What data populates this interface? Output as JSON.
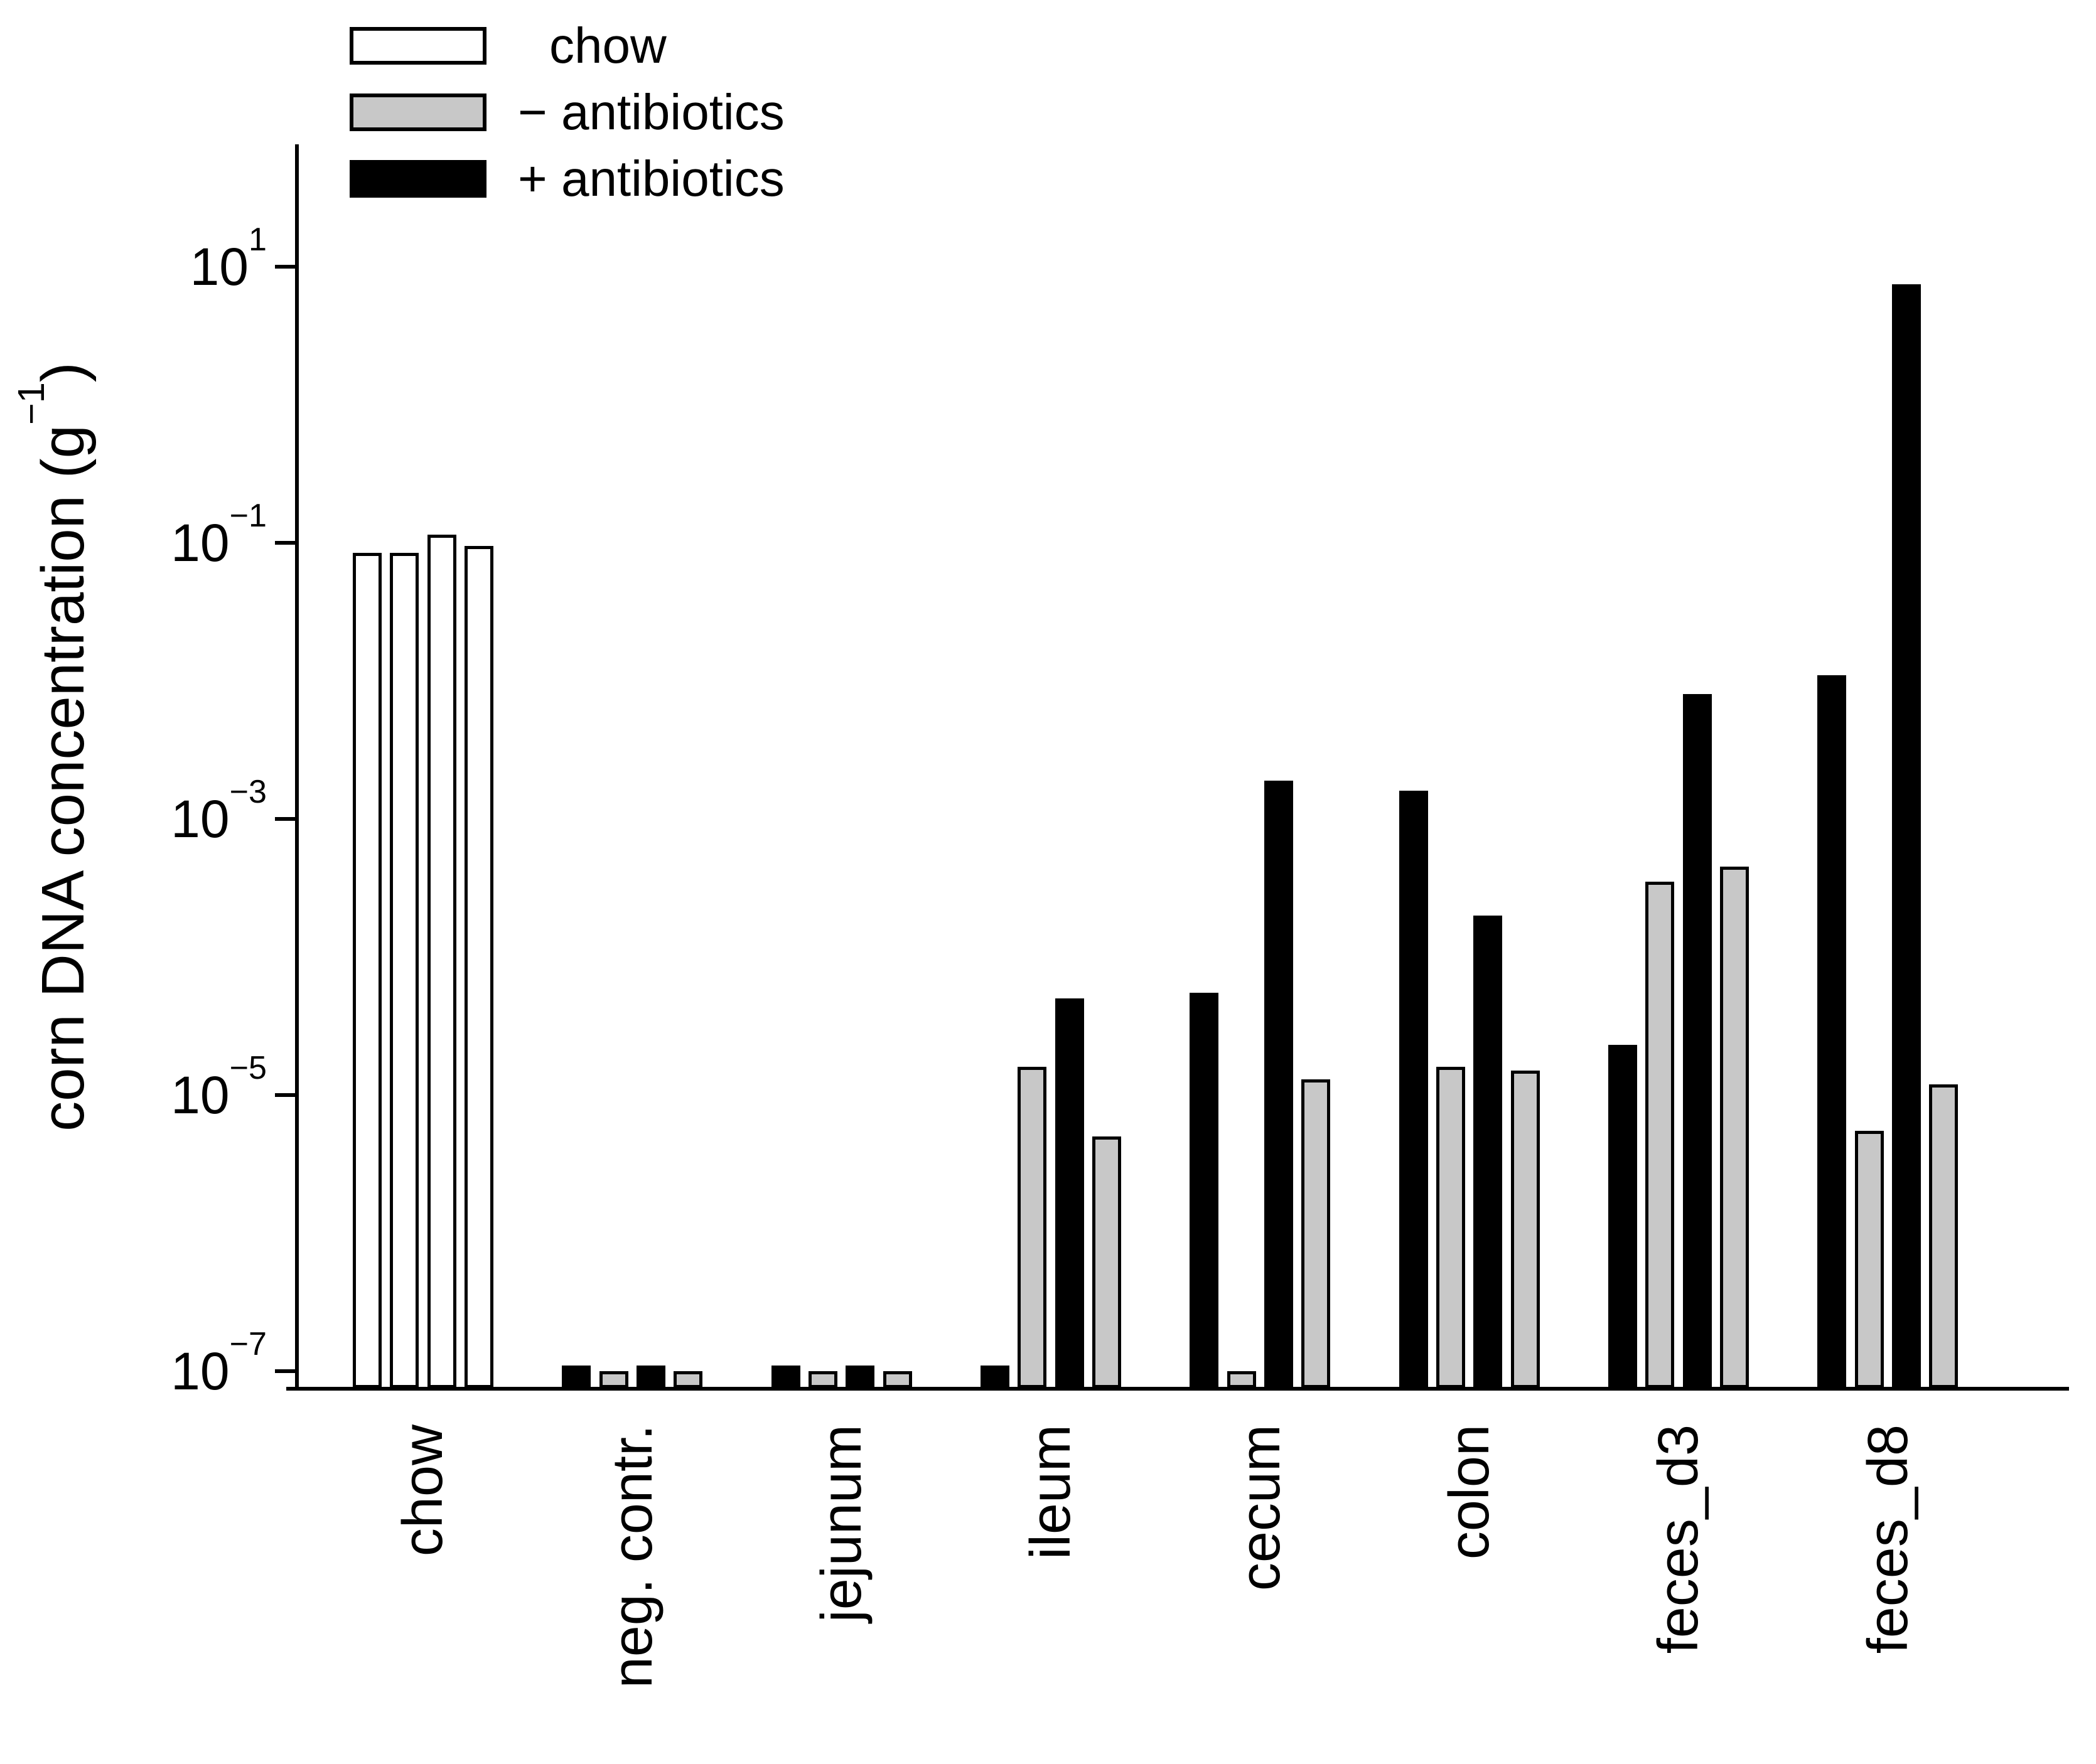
{
  "legend": {
    "items": [
      {
        "label": "chow",
        "fill": "#ffffff"
      },
      {
        "label": "− antibiotics",
        "fill": "#c8c8c8"
      },
      {
        "label": "+ antibiotics",
        "fill": "#000000"
      }
    ]
  },
  "y_axis": {
    "title_main": "corn DNA concentration (g",
    "title_sup": "−1",
    "title_close": ")",
    "ticks": [
      {
        "base": "10",
        "exp": "1",
        "value": 10.0
      },
      {
        "base": "10",
        "exp": "−1",
        "value": 0.1
      },
      {
        "base": "10",
        "exp": "−3",
        "value": 0.001
      },
      {
        "base": "10",
        "exp": "−5",
        "value": 1e-05
      },
      {
        "base": "10",
        "exp": "−7",
        "value": 1e-07
      }
    ]
  },
  "chart_data": {
    "type": "bar",
    "title": "",
    "xlabel": "",
    "ylabel": "corn DNA concentration (g−1)",
    "y_scale": "log10",
    "ylim": [
      7.8e-08,
      63.0
    ],
    "grid": false,
    "legend_position": "top-left",
    "categories": [
      "chow",
      "neg. contr.",
      "jejunum",
      "ileum",
      "cecum",
      "colon",
      "feces_d3",
      "feces_d8"
    ],
    "series_names": [
      "chow",
      "− antibiotics",
      "+ antibiotics"
    ],
    "groups": [
      {
        "category": "chow",
        "bars": [
          {
            "series": 0,
            "value": 0.085
          },
          {
            "series": 0,
            "value": 0.085
          },
          {
            "series": 0,
            "value": 0.115
          },
          {
            "series": 0,
            "value": 0.095
          }
        ]
      },
      {
        "category": "neg. contr.",
        "bars": [
          {
            "series": 2,
            "value": 1.1e-07
          },
          {
            "series": 1,
            "value": 1e-07
          },
          {
            "series": 2,
            "value": 1.1e-07
          },
          {
            "series": 1,
            "value": 1e-07
          }
        ]
      },
      {
        "category": "jejunum",
        "bars": [
          {
            "series": 2,
            "value": 1.1e-07
          },
          {
            "series": 1,
            "value": 1e-07
          },
          {
            "series": 2,
            "value": 1.1e-07
          },
          {
            "series": 1,
            "value": 1e-07
          }
        ]
      },
      {
        "category": "ileum",
        "bars": [
          {
            "series": 2,
            "value": 1.1e-07
          },
          {
            "series": 1,
            "value": 1.6e-05
          },
          {
            "series": 2,
            "value": 5e-05
          },
          {
            "series": 1,
            "value": 5e-06
          }
        ]
      },
      {
        "category": "cecum",
        "bars": [
          {
            "series": 2,
            "value": 5.5e-05
          },
          {
            "series": 1,
            "value": 1e-07
          },
          {
            "series": 2,
            "value": 0.0019
          },
          {
            "series": 1,
            "value": 1.3e-05
          }
        ]
      },
      {
        "category": "colon",
        "bars": [
          {
            "series": 2,
            "value": 0.0016
          },
          {
            "series": 1,
            "value": 1.6e-05
          },
          {
            "series": 2,
            "value": 0.0002
          },
          {
            "series": 1,
            "value": 1.5e-05
          }
        ]
      },
      {
        "category": "feces_d3",
        "bars": [
          {
            "series": 2,
            "value": 2.3e-05
          },
          {
            "series": 1,
            "value": 0.00035
          },
          {
            "series": 2,
            "value": 0.008
          },
          {
            "series": 1,
            "value": 0.00045
          }
        ]
      },
      {
        "category": "feces_d8",
        "bars": [
          {
            "series": 2,
            "value": 0.011
          },
          {
            "series": 1,
            "value": 5.5e-06
          },
          {
            "series": 2,
            "value": 7.5
          },
          {
            "series": 1,
            "value": 1.2e-05
          }
        ]
      }
    ]
  }
}
